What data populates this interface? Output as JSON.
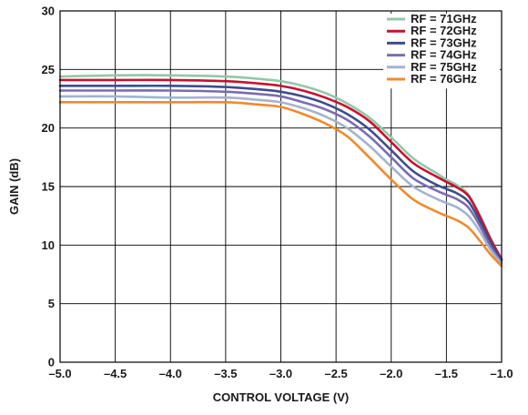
{
  "chart_data": {
    "type": "line",
    "xlabel": "CONTROL VOLTAGE (V)",
    "ylabel": "GAIN (dB)",
    "xlim": [
      -5.0,
      -1.0
    ],
    "ylim": [
      0,
      30
    ],
    "x_ticks": [
      -5.0,
      -4.5,
      -4.0,
      -3.5,
      -3.0,
      -2.5,
      -2.0,
      -1.5,
      -1.0
    ],
    "x_tick_labels": [
      "–5.0",
      "–4.5",
      "–4.0",
      "–3.5",
      "–3.0",
      "–2.5",
      "–2.0",
      "–1.5",
      "–1.0"
    ],
    "y_ticks": [
      0,
      5,
      10,
      15,
      20,
      25,
      30
    ],
    "y_tick_labels": [
      "0",
      "5",
      "10",
      "15",
      "20",
      "25",
      "30"
    ],
    "grid": true,
    "legend_position": "top-right",
    "series": [
      {
        "name": "RF = 71GHz",
        "color": "#8fc9a8",
        "x": [
          -5.0,
          -4.5,
          -4.0,
          -3.5,
          -3.2,
          -3.0,
          -2.8,
          -2.6,
          -2.4,
          -2.2,
          -2.0,
          -1.8,
          -1.6,
          -1.5,
          -1.4,
          -1.3,
          -1.2,
          -1.1,
          -1.0
        ],
        "y": [
          24.4,
          24.5,
          24.5,
          24.4,
          24.2,
          24.0,
          23.6,
          23.0,
          22.1,
          20.9,
          19.2,
          17.4,
          16.2,
          15.6,
          15.1,
          14.3,
          12.6,
          10.6,
          8.7
        ]
      },
      {
        "name": "RF = 72GHz",
        "color": "#c8102e",
        "x": [
          -5.0,
          -4.5,
          -4.0,
          -3.5,
          -3.2,
          -3.0,
          -2.8,
          -2.6,
          -2.4,
          -2.2,
          -2.0,
          -1.8,
          -1.6,
          -1.5,
          -1.4,
          -1.3,
          -1.2,
          -1.1,
          -1.0
        ],
        "y": [
          24.1,
          24.1,
          24.1,
          24.0,
          23.8,
          23.6,
          23.2,
          22.6,
          21.8,
          20.6,
          18.8,
          17.0,
          15.9,
          15.4,
          14.9,
          14.2,
          12.5,
          10.5,
          8.8
        ]
      },
      {
        "name": "RF = 73GHz",
        "color": "#3b4e8c",
        "x": [
          -5.0,
          -4.5,
          -4.0,
          -3.5,
          -3.2,
          -3.0,
          -2.8,
          -2.6,
          -2.4,
          -2.2,
          -2.0,
          -1.8,
          -1.6,
          -1.5,
          -1.4,
          -1.3,
          -1.2,
          -1.1,
          -1.0
        ],
        "y": [
          23.6,
          23.6,
          23.6,
          23.5,
          23.3,
          23.1,
          22.7,
          22.1,
          21.2,
          19.9,
          18.1,
          16.3,
          15.2,
          14.8,
          14.4,
          13.7,
          12.1,
          10.2,
          8.7
        ]
      },
      {
        "name": "RF = 74GHz",
        "color": "#7b6bb0",
        "x": [
          -5.0,
          -4.5,
          -4.0,
          -3.5,
          -3.2,
          -3.0,
          -2.8,
          -2.6,
          -2.4,
          -2.2,
          -2.0,
          -1.8,
          -1.6,
          -1.5,
          -1.4,
          -1.3,
          -1.2,
          -1.1,
          -1.0
        ],
        "y": [
          23.2,
          23.2,
          23.2,
          23.1,
          22.9,
          22.7,
          22.2,
          21.6,
          20.7,
          19.3,
          17.5,
          15.7,
          14.7,
          14.3,
          13.9,
          13.2,
          11.7,
          9.9,
          8.5
        ]
      },
      {
        "name": "RF = 75GHz",
        "color": "#a3b3cf",
        "x": [
          -5.0,
          -4.5,
          -4.0,
          -3.5,
          -3.2,
          -3.0,
          -2.8,
          -2.6,
          -2.4,
          -2.2,
          -2.0,
          -1.8,
          -1.6,
          -1.5,
          -1.4,
          -1.3,
          -1.2,
          -1.1,
          -1.0
        ],
        "y": [
          22.7,
          22.7,
          22.6,
          22.6,
          22.4,
          22.2,
          21.7,
          21.0,
          20.0,
          18.5,
          16.7,
          15.0,
          14.0,
          13.6,
          13.2,
          12.5,
          11.2,
          9.6,
          8.4
        ]
      },
      {
        "name": "RF = 76GHz",
        "color": "#f08a2c",
        "x": [
          -5.0,
          -4.5,
          -4.0,
          -3.5,
          -3.2,
          -3.0,
          -2.8,
          -2.6,
          -2.4,
          -2.2,
          -2.0,
          -1.8,
          -1.6,
          -1.5,
          -1.4,
          -1.3,
          -1.2,
          -1.1,
          -1.0
        ],
        "y": [
          22.2,
          22.2,
          22.2,
          22.2,
          22.0,
          21.8,
          21.2,
          20.4,
          19.3,
          17.5,
          15.6,
          13.9,
          12.9,
          12.5,
          12.1,
          11.5,
          10.4,
          9.2,
          8.2
        ]
      }
    ]
  }
}
